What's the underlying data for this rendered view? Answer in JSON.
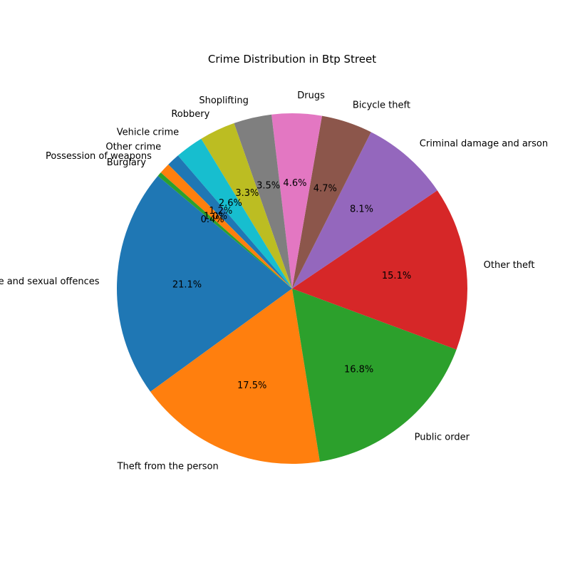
{
  "chart_data": {
    "type": "pie",
    "title": "Crime Distribution in Btp Street",
    "start_angle_deg": 140,
    "direction": "counterclockwise",
    "categories": [
      "Violence and sexual offences",
      "Theft from the person",
      "Public order",
      "Other theft",
      "Criminal damage and arson",
      "Bicycle theft",
      "Drugs",
      "Shoplifting",
      "Robbery",
      "Vehicle crime",
      "Other crime",
      "Possession of weapons",
      "Burglary"
    ],
    "values": [
      21.1,
      17.5,
      16.8,
      15.1,
      8.1,
      4.7,
      4.6,
      3.5,
      3.3,
      2.6,
      1.2,
      1.0,
      0.4
    ],
    "percent_labels": [
      "21.1%",
      "17.5%",
      "16.8%",
      "15.1%",
      "8.1%",
      "4.7%",
      "4.6%",
      "3.5%",
      "3.3%",
      "2.6%",
      "1.2%",
      "1.0%",
      "0.4%"
    ],
    "colors": [
      "#1f77b4",
      "#ff7f0e",
      "#2ca02c",
      "#d62728",
      "#9467bd",
      "#8c564b",
      "#e377c2",
      "#7f7f7f",
      "#bcbd22",
      "#17becf",
      "#1f77b4",
      "#ff7f0e",
      "#2ca02c"
    ]
  }
}
